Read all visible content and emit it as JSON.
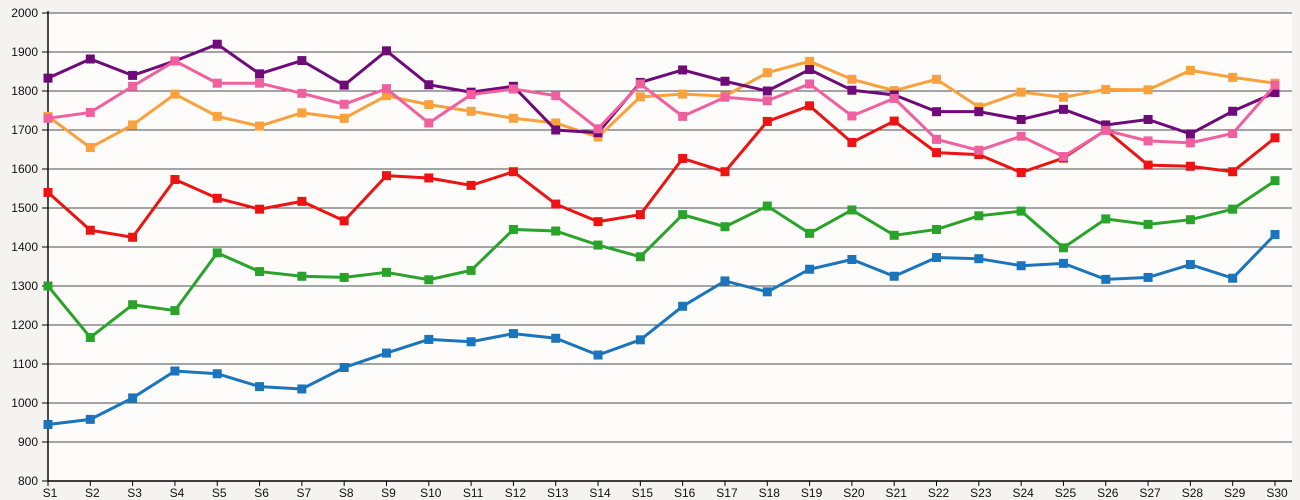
{
  "page": {
    "background": "#f5f3f0",
    "plot_background": "#fdfcfa",
    "gridline_color": "#4d4d4d",
    "axis_color": "#000000",
    "label_color": "#111111"
  },
  "chart_data": {
    "type": "line",
    "title": "",
    "subtitle": "",
    "xlabel": "",
    "ylabel": "",
    "legend": "none",
    "grid": true,
    "marker": "square",
    "ylim": [
      800,
      2000
    ],
    "ytick_step": 100,
    "ytick_labels": [
      "800",
      "900",
      "1000",
      "1100",
      "1200",
      "1300",
      "1400",
      "1500",
      "1600",
      "1700",
      "1800",
      "1900",
      "2000"
    ],
    "categories": [
      "S1",
      "S2",
      "S3",
      "S4",
      "S5",
      "S6",
      "S7",
      "S8",
      "S9",
      "S10",
      "S11",
      "S12",
      "S13",
      "S14",
      "S15",
      "S16",
      "S17",
      "S18",
      "S19",
      "S20",
      "S21",
      "S22",
      "S23",
      "S24",
      "S25",
      "S26",
      "S27",
      "S28",
      "S29",
      "S30"
    ],
    "series": [
      {
        "name": "blue",
        "color": "#1b75bc",
        "values": [
          945,
          958,
          1013,
          1082,
          1075,
          1042,
          1036,
          1091,
          1128,
          1163,
          1157,
          1178,
          1166,
          1123,
          1162,
          1248,
          1313,
          1285,
          1343,
          1368,
          1325,
          1373,
          1370,
          1352,
          1358,
          1317,
          1322,
          1355,
          1320,
          1432
        ]
      },
      {
        "name": "green",
        "color": "#2aa32a",
        "values": [
          1300,
          1168,
          1252,
          1237,
          1385,
          1337,
          1325,
          1322,
          1335,
          1316,
          1340,
          1445,
          1441,
          1405,
          1375,
          1483,
          1452,
          1505,
          1435,
          1495,
          1430,
          1445,
          1480,
          1492,
          1398,
          1472,
          1458,
          1470,
          1497,
          1570
        ]
      },
      {
        "name": "red",
        "color": "#ec1313",
        "values": [
          1540,
          1443,
          1425,
          1573,
          1525,
          1497,
          1517,
          1467,
          1583,
          1577,
          1558,
          1593,
          1510,
          1465,
          1483,
          1627,
          1593,
          1722,
          1762,
          1668,
          1723,
          1642,
          1637,
          1591,
          1628,
          1700,
          1610,
          1607,
          1593,
          1680
        ]
      },
      {
        "name": "orange",
        "color": "#f9a13c",
        "values": [
          1735,
          1655,
          1713,
          1792,
          1735,
          1710,
          1744,
          1730,
          1788,
          1765,
          1748,
          1730,
          1718,
          1682,
          1785,
          1792,
          1787,
          1847,
          1876,
          1830,
          1801,
          1830,
          1759,
          1797,
          1784,
          1804,
          1803,
          1853,
          1835,
          1820
        ]
      },
      {
        "name": "purple",
        "color": "#6e0b78",
        "values": [
          1833,
          1882,
          1840,
          1877,
          1920,
          1844,
          1878,
          1815,
          1903,
          1816,
          1797,
          1812,
          1700,
          1693,
          1822,
          1854,
          1825,
          1800,
          1855,
          1802,
          1790,
          1747,
          1747,
          1727,
          1753,
          1713,
          1727,
          1690,
          1748,
          1796
        ]
      },
      {
        "name": "pink",
        "color": "#f0609e",
        "values": [
          1730,
          1745,
          1812,
          1877,
          1820,
          1820,
          1794,
          1766,
          1806,
          1718,
          1791,
          1805,
          1788,
          1703,
          1818,
          1735,
          1784,
          1775,
          1818,
          1736,
          1781,
          1676,
          1648,
          1684,
          1632,
          1699,
          1672,
          1667,
          1691,
          1815
        ]
      }
    ]
  }
}
